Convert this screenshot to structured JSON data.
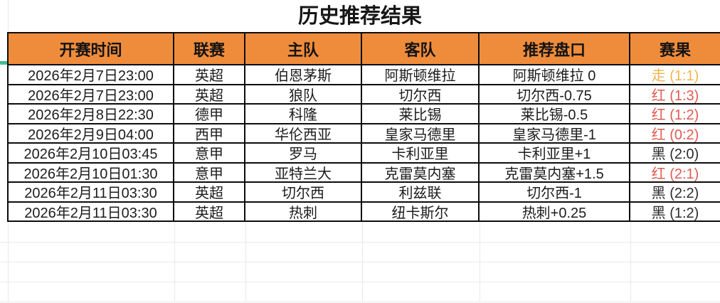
{
  "title": "历史推荐结果",
  "columns": [
    "开赛时间",
    "联赛",
    "主队",
    "客队",
    "推荐盘口",
    "赛果"
  ],
  "rows": [
    {
      "time": "2026年2月7日23:00",
      "league": "英超",
      "home": "伯恩茅斯",
      "away": "阿斯顿维拉",
      "handicap": "阿斯顿维拉 0",
      "result": "走 (1:1)",
      "result_color": "#efb44a"
    },
    {
      "time": "2026年2月7日23:00",
      "league": "英超",
      "home": "狼队",
      "away": "切尔西",
      "handicap": "切尔西-0.75",
      "result": "红 (1:3)",
      "result_color": "#df5b50"
    },
    {
      "time": "2026年2月8日22:30",
      "league": "德甲",
      "home": "科隆",
      "away": "莱比锡",
      "handicap": "莱比锡-0.5",
      "result": "红 (1:2)",
      "result_color": "#df5b50"
    },
    {
      "time": "2026年2月9日04:00",
      "league": "西甲",
      "home": "华伦西亚",
      "away": "皇家马德里",
      "handicap": "皇家马德里-1",
      "result": "红 (0:2)",
      "result_color": "#df5b50"
    },
    {
      "time": "2026年2月10日03:45",
      "league": "意甲",
      "home": "罗马",
      "away": "卡利亚里",
      "handicap": "卡利亚里+1",
      "result": "黑 (2:0)",
      "result_color": "#2b2b2b"
    },
    {
      "time": "2026年2月10日01:30",
      "league": "意甲",
      "home": "亚特兰大",
      "away": "克雷莫内塞",
      "handicap": "克雷莫内塞+1.5",
      "result": "红 (2:1)",
      "result_color": "#df5b50"
    },
    {
      "time": "2026年2月11日03:30",
      "league": "英超",
      "home": "切尔西",
      "away": "利兹联",
      "handicap": "切尔西-1",
      "result": "黑 (2:2)",
      "result_color": "#2b2b2b"
    },
    {
      "time": "2026年2月11日03:30",
      "league": "英超",
      "home": "热刺",
      "away": "纽卡斯尔",
      "handicap": "热刺+0.25",
      "result": "黑 (1:2)",
      "result_color": "#2b2b2b"
    }
  ],
  "result_legend": {
    "draw": "走",
    "win": "红",
    "loss": "黑"
  },
  "colors": {
    "header_bg": "#ef8c3c",
    "table_border": "#0c0c0c",
    "cell_text": "#1c1c1c",
    "result_draw": "#efb44a",
    "result_win": "#df5b50",
    "result_loss": "#2b2b2b",
    "faint_gridline": "#e9e9e9",
    "accent_green": "#2eb78d"
  },
  "empty_row_count": 4
}
